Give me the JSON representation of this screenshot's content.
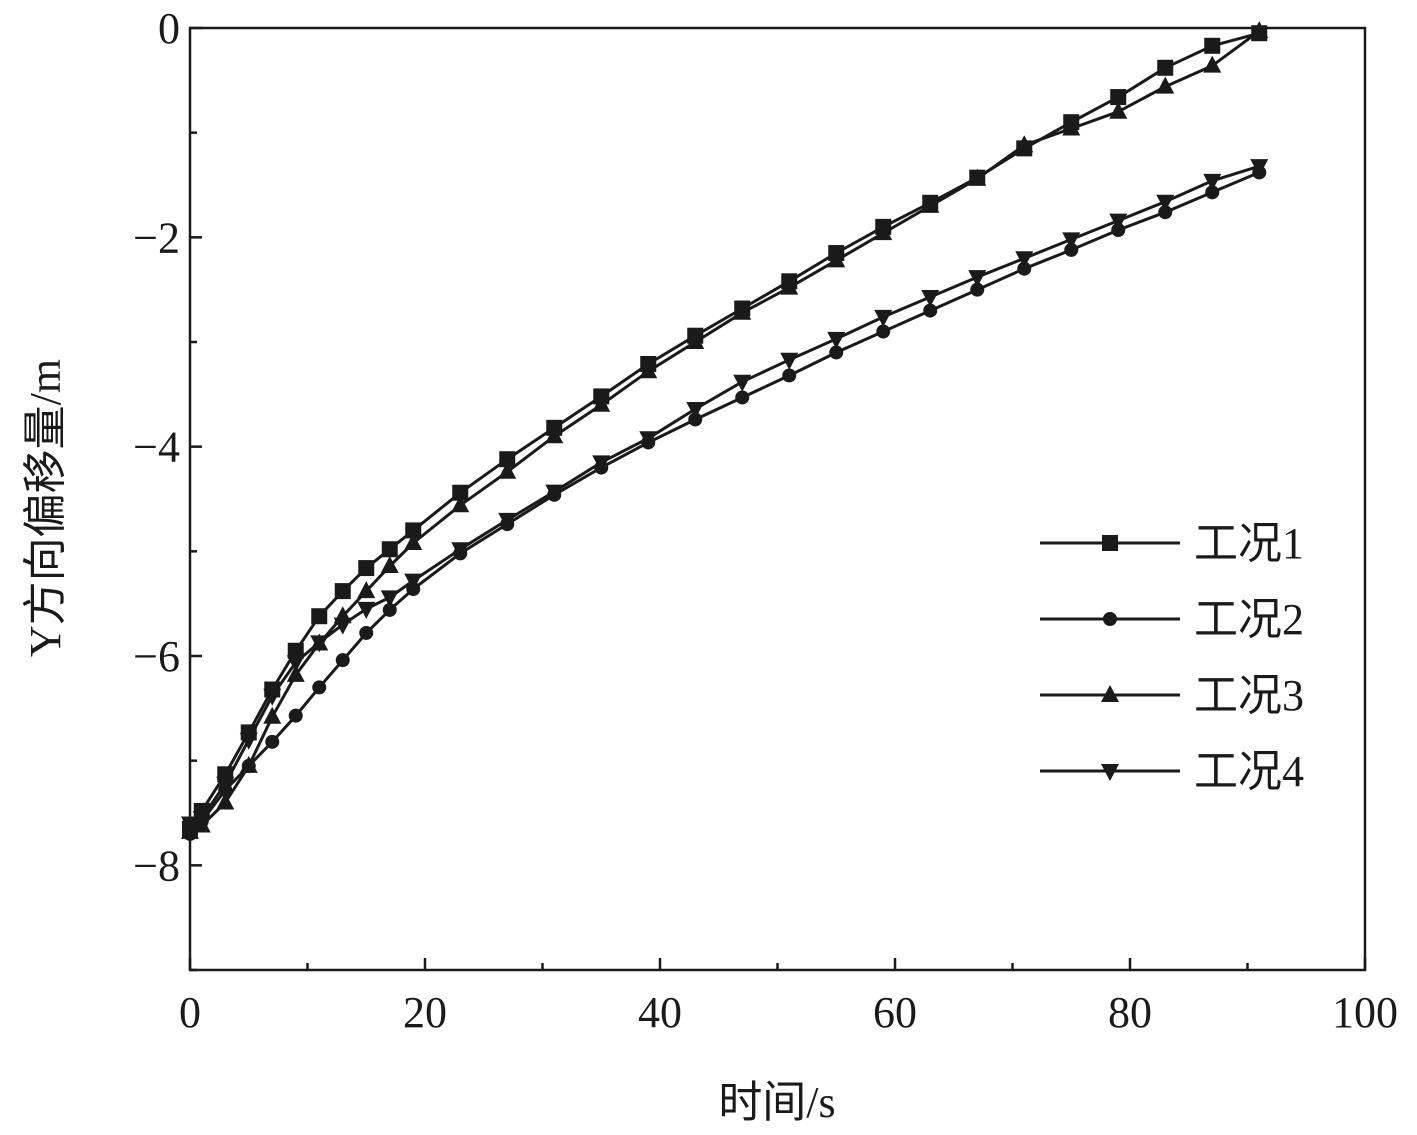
{
  "chart_data": {
    "type": "line",
    "title": "",
    "xlabel": "时间/s",
    "ylabel": "Y方向偏移量/m",
    "xlim": [
      0,
      100
    ],
    "ylim": [
      -9,
      0
    ],
    "xticks": [
      0,
      20,
      40,
      60,
      80,
      100
    ],
    "yticks": [
      0,
      -2,
      -4,
      -6,
      -8
    ],
    "xtick_labels": [
      "0",
      "20",
      "40",
      "60",
      "80",
      "100"
    ],
    "ytick_labels": [
      "0",
      "−2",
      "−4",
      "−6",
      "−8"
    ],
    "grid": false,
    "legend_position": "right",
    "series": [
      {
        "name": "工况1",
        "marker": "square",
        "x": [
          0,
          1,
          3,
          5,
          7,
          9,
          11,
          13,
          15,
          17,
          19,
          23,
          27,
          31,
          35,
          39,
          43,
          47,
          51,
          55,
          59,
          63,
          67,
          71,
          75,
          79,
          83,
          87,
          91
        ],
        "y": [
          -7.65,
          -7.48,
          -7.13,
          -6.73,
          -6.32,
          -5.95,
          -5.62,
          -5.38,
          -5.16,
          -4.98,
          -4.8,
          -4.44,
          -4.12,
          -3.82,
          -3.52,
          -3.21,
          -2.94,
          -2.68,
          -2.42,
          -2.15,
          -1.9,
          -1.67,
          -1.43,
          -1.15,
          -0.9,
          -0.66,
          -0.38,
          -0.17,
          -0.05
        ]
      },
      {
        "name": "工况2",
        "marker": "circle",
        "x": [
          0,
          1,
          3,
          5,
          7,
          9,
          11,
          13,
          15,
          17,
          19,
          23,
          27,
          31,
          35,
          39,
          43,
          47,
          51,
          55,
          59,
          63,
          67,
          71,
          75,
          79,
          83,
          87,
          91
        ],
        "y": [
          -7.7,
          -7.58,
          -7.28,
          -7.05,
          -6.82,
          -6.57,
          -6.3,
          -6.04,
          -5.78,
          -5.56,
          -5.36,
          -5.02,
          -4.74,
          -4.46,
          -4.2,
          -3.96,
          -3.74,
          -3.53,
          -3.32,
          -3.1,
          -2.9,
          -2.7,
          -2.5,
          -2.3,
          -2.12,
          -1.93,
          -1.76,
          -1.57,
          -1.38
        ]
      },
      {
        "name": "工况3",
        "marker": "triangle-up",
        "x": [
          0,
          1,
          3,
          5,
          7,
          9,
          11,
          13,
          15,
          17,
          19,
          23,
          27,
          31,
          35,
          39,
          43,
          47,
          51,
          55,
          59,
          63,
          67,
          71,
          75,
          79,
          83,
          87,
          91
        ],
        "y": [
          -7.68,
          -7.62,
          -7.4,
          -7.05,
          -6.58,
          -6.18,
          -5.88,
          -5.62,
          -5.38,
          -5.14,
          -4.92,
          -4.56,
          -4.24,
          -3.9,
          -3.6,
          -3.28,
          -3.0,
          -2.72,
          -2.48,
          -2.22,
          -1.96,
          -1.7,
          -1.44,
          -1.12,
          -0.96,
          -0.8,
          -0.56,
          -0.36,
          -0.03
        ]
      },
      {
        "name": "工况4",
        "marker": "triangle-down",
        "x": [
          0,
          1,
          3,
          5,
          7,
          9,
          11,
          13,
          15,
          17,
          19,
          23,
          27,
          31,
          35,
          39,
          43,
          47,
          51,
          55,
          59,
          63,
          67,
          71,
          75,
          79,
          83,
          87,
          91
        ],
        "y": [
          -7.6,
          -7.55,
          -7.22,
          -6.8,
          -6.38,
          -6.06,
          -5.87,
          -5.7,
          -5.55,
          -5.44,
          -5.28,
          -4.98,
          -4.7,
          -4.43,
          -4.15,
          -3.92,
          -3.64,
          -3.38,
          -3.17,
          -2.97,
          -2.76,
          -2.57,
          -2.38,
          -2.2,
          -2.02,
          -1.84,
          -1.66,
          -1.46,
          -1.32
        ]
      }
    ]
  }
}
